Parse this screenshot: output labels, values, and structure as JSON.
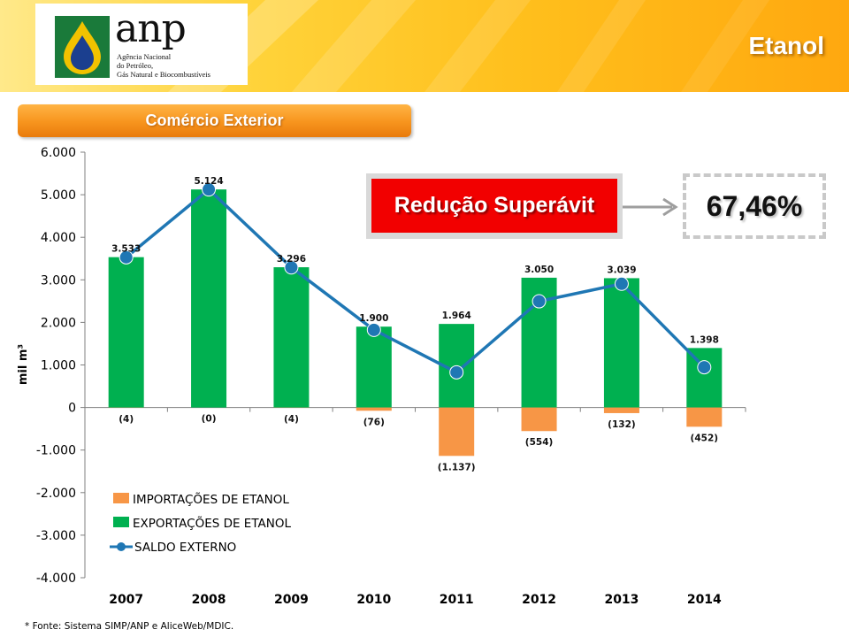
{
  "header": {
    "logo": {
      "wordmark": "anp",
      "lines": [
        "Agência Nacional",
        "do Petróleo,",
        "Gás Natural e Biocombustíveis"
      ]
    },
    "title": "Etanol"
  },
  "section_label": "Comércio Exterior",
  "callout": {
    "label": "Redução Superávit",
    "value": "67,46%"
  },
  "footnote": "* Fonte: Sistema SIMP/ANP e AliceWeb/MDIC.",
  "colors": {
    "imports": "#f79646",
    "exports": "#00b050",
    "saldo": "#1f77b4"
  },
  "chart_data": {
    "type": "bar",
    "categories": [
      "2007",
      "2008",
      "2009",
      "2010",
      "2011",
      "2012",
      "2013",
      "2014"
    ],
    "ylabel": "mil m³",
    "ylim": [
      -4000,
      6000
    ],
    "yticks": [
      6000,
      5000,
      4000,
      3000,
      2000,
      1000,
      0,
      -1000,
      -2000,
      -3000,
      -4000
    ],
    "ytick_labels": [
      "6.000",
      "5.000",
      "4.000",
      "3.000",
      "2.000",
      "1.000",
      "0",
      "-1.000",
      "-2.000",
      "-3.000",
      "-4.000"
    ],
    "legend_position": "bottom-left",
    "series": [
      {
        "name": "IMPORTAÇÕES DE ETANOL",
        "kind": "bar",
        "values": [
          -4,
          0,
          -4,
          -76,
          -1137,
          -554,
          -132,
          -452
        ],
        "labels": [
          "(4)",
          "(0)",
          "(4)",
          "(76)",
          "(1.137)",
          "(554)",
          "(132)",
          "(452)"
        ]
      },
      {
        "name": "EXPORTAÇÕES DE ETANOL",
        "kind": "bar",
        "values": [
          3533,
          5124,
          3296,
          1900,
          1964,
          3050,
          3039,
          1398
        ],
        "labels": [
          "3.533",
          "5.124",
          "3.296",
          "1.900",
          "1.964",
          "3.050",
          "3.039",
          "1.398"
        ]
      },
      {
        "name": "SALDO EXTERNO",
        "kind": "line",
        "values": [
          3529,
          5124,
          3292,
          1824,
          827,
          2496,
          2907,
          946
        ]
      }
    ]
  }
}
